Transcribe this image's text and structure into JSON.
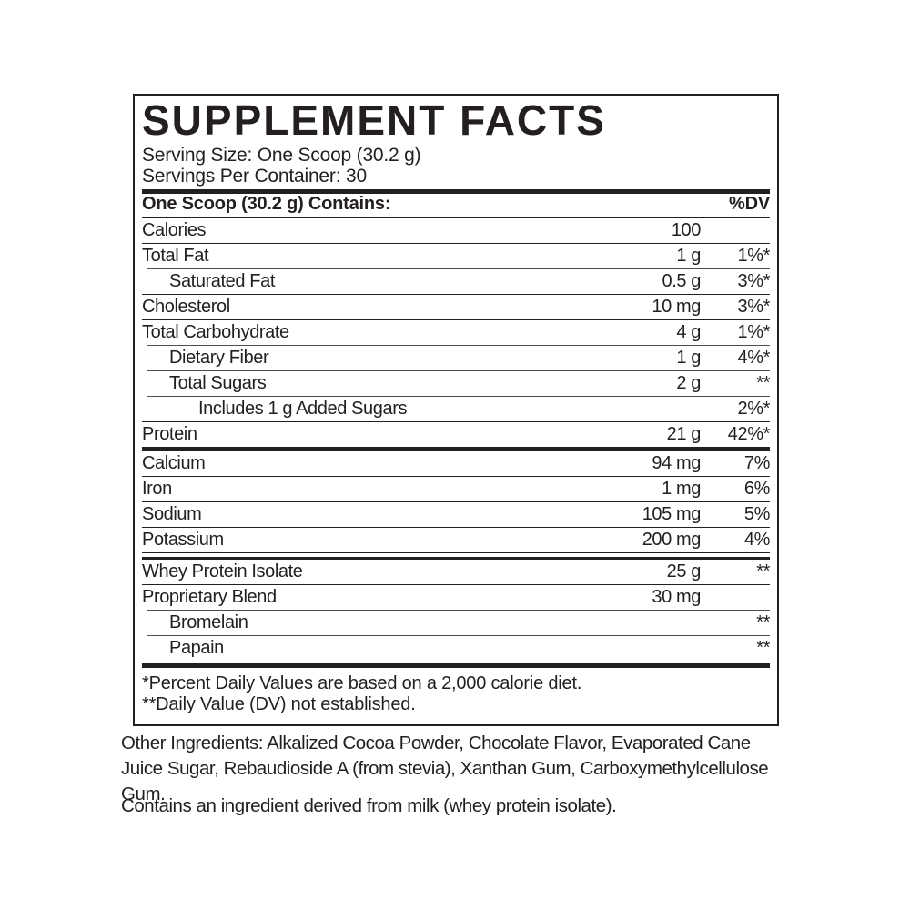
{
  "panel": {
    "title": "SUPPLEMENT FACTS",
    "serving_size": "Serving Size: One Scoop (30.2 g)",
    "servings_per_container": "Servings Per Container: 30",
    "columns": {
      "contains": "One Scoop (30.2 g) Contains:",
      "dv": "%DV"
    },
    "rows": [
      {
        "name": "Calories",
        "amount": "100",
        "dv": "",
        "indent": 0,
        "rule": null
      },
      {
        "name": "Total Fat",
        "amount": "1 g",
        "dv": "1%*",
        "indent": 0,
        "rule": "thin"
      },
      {
        "name": "Saturated Fat",
        "amount": "0.5 g",
        "dv": "3%*",
        "indent": 1,
        "rule": "hair"
      },
      {
        "name": "Cholesterol",
        "amount": "10 mg",
        "dv": "3%*",
        "indent": 0,
        "rule": "thin"
      },
      {
        "name": "Total Carbohydrate",
        "amount": "4 g",
        "dv": "1%*",
        "indent": 0,
        "rule": "thin"
      },
      {
        "name": "Dietary Fiber",
        "amount": "1 g",
        "dv": "4%*",
        "indent": 1,
        "rule": "hair"
      },
      {
        "name": "Total Sugars",
        "amount": "2 g",
        "dv": "**",
        "indent": 1,
        "rule": "hair"
      },
      {
        "name": "Includes 1 g Added Sugars",
        "amount": "",
        "dv": "2%*",
        "indent": 2,
        "rule": "hair"
      },
      {
        "name": "Protein",
        "amount": "21 g",
        "dv": "42%*",
        "indent": 0,
        "rule": "thin"
      },
      {
        "name": "Calcium",
        "amount": "94 mg",
        "dv": "7%",
        "indent": 0,
        "rule": "thick"
      },
      {
        "name": "Iron",
        "amount": "1 mg",
        "dv": "6%",
        "indent": 0,
        "rule": "thin"
      },
      {
        "name": "Sodium",
        "amount": "105 mg",
        "dv": "5%",
        "indent": 0,
        "rule": "thin"
      },
      {
        "name": "Potassium",
        "amount": "200 mg",
        "dv": "4%",
        "indent": 0,
        "rule": "thin"
      },
      {
        "name": "Whey Protein Isolate",
        "amount": "25 g",
        "dv": "**",
        "indent": 0,
        "rule": "double"
      },
      {
        "name": "Proprietary Blend",
        "amount": "30 mg",
        "dv": "",
        "indent": 0,
        "rule": "thin"
      },
      {
        "name": "Bromelain",
        "amount": "",
        "dv": "**",
        "indent": 1,
        "rule": "hair"
      },
      {
        "name": "Papain",
        "amount": "",
        "dv": "**",
        "indent": 1,
        "rule": "hair"
      }
    ],
    "footnotes": [
      "*Percent Daily Values are based on a 2,000 calorie diet.",
      "**Daily Value (DV) not established."
    ]
  },
  "other_ingredients": "Other Ingredients: Alkalized Cocoa Powder, Chocolate Flavor, Evaporated Cane Juice Sugar, Rebaudioside A (from stevia), Xanthan Gum, Carboxymethylcellulose Gum.",
  "allergen_statement": "Contains an ingredient derived from milk (whey protein isolate).",
  "colors": {
    "text": "#231f20",
    "background": "#ffffff"
  }
}
